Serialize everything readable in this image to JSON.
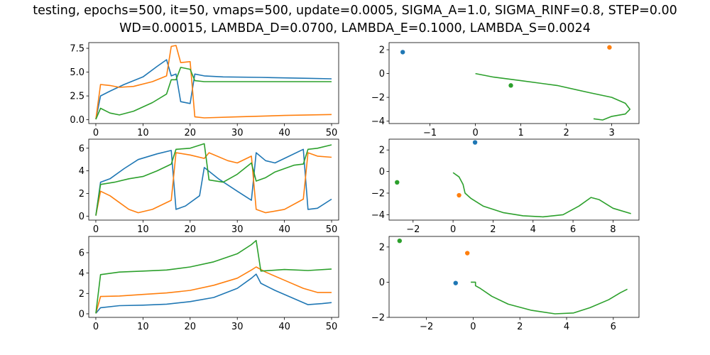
{
  "title": {
    "line1": "testing, epochs=500, it=50, vmaps=500, update=0.0005, SIGMA_A=1.0, SIGMA_RINF=0.8, STEP=0.00",
    "line2": "WD=0.00015, LAMBDA_D=0.0700, LAMBDA_E=0.1000, LAMBDA_S=0.0024"
  },
  "colors": {
    "c0": "#1f77b4",
    "c1": "#ff7f0e",
    "c2": "#2ca02c"
  },
  "chart_data": [
    {
      "type": "line",
      "xlim": [
        -1.5,
        51.5
      ],
      "ylim": [
        -0.4,
        8.1
      ],
      "xticks": [
        0,
        10,
        20,
        30,
        40,
        50
      ],
      "yticks": [
        0.0,
        2.5,
        5.0,
        7.5
      ],
      "ytick_labels": [
        "0.0",
        "2.5",
        "5.0",
        "7.5"
      ],
      "series": [
        {
          "color": "#1f77b4",
          "points": [
            [
              0,
              0.05
            ],
            [
              1,
              2.5
            ],
            [
              3,
              3.0
            ],
            [
              6,
              3.7
            ],
            [
              10,
              4.5
            ],
            [
              13,
              5.6
            ],
            [
              15,
              6.3
            ],
            [
              16,
              4.6
            ],
            [
              17,
              4.8
            ],
            [
              18,
              1.9
            ],
            [
              20,
              1.7
            ],
            [
              21,
              4.8
            ],
            [
              23,
              4.6
            ],
            [
              27,
              4.5
            ],
            [
              35,
              4.45
            ],
            [
              45,
              4.35
            ],
            [
              50,
              4.3
            ]
          ]
        },
        {
          "color": "#ff7f0e",
          "points": [
            [
              0,
              0.05
            ],
            [
              1,
              3.7
            ],
            [
              3,
              3.6
            ],
            [
              5,
              3.4
            ],
            [
              8,
              3.5
            ],
            [
              12,
              4.0
            ],
            [
              15,
              4.6
            ],
            [
              16,
              7.7
            ],
            [
              17,
              7.8
            ],
            [
              18,
              6.0
            ],
            [
              20,
              6.1
            ],
            [
              21,
              0.3
            ],
            [
              23,
              0.2
            ],
            [
              30,
              0.3
            ],
            [
              40,
              0.45
            ],
            [
              50,
              0.55
            ]
          ]
        },
        {
          "color": "#2ca02c",
          "points": [
            [
              0,
              0.05
            ],
            [
              1,
              1.2
            ],
            [
              3,
              0.7
            ],
            [
              5,
              0.5
            ],
            [
              8,
              0.9
            ],
            [
              12,
              1.8
            ],
            [
              15,
              2.7
            ],
            [
              16,
              4.2
            ],
            [
              17,
              4.2
            ],
            [
              18,
              5.5
            ],
            [
              20,
              5.3
            ],
            [
              21,
              4.1
            ],
            [
              23,
              4.0
            ],
            [
              30,
              4.0
            ],
            [
              40,
              4.0
            ],
            [
              50,
              4.0
            ]
          ]
        }
      ]
    },
    {
      "type": "scatter+line",
      "xlim": [
        -1.9,
        3.6
      ],
      "ylim": [
        -4.2,
        2.6
      ],
      "xticks": [
        -1,
        0,
        1,
        2,
        3
      ],
      "yticks": [
        -4,
        -2,
        0,
        2
      ],
      "points": [
        {
          "color": "#1f77b4",
          "x": -1.6,
          "y": 1.8
        },
        {
          "color": "#ff7f0e",
          "x": 2.95,
          "y": 2.2
        },
        {
          "color": "#2ca02c",
          "x": 0.78,
          "y": -1.0
        }
      ],
      "line": {
        "color": "#2ca02c",
        "points": [
          [
            0,
            0.0
          ],
          [
            0.4,
            -0.3
          ],
          [
            1.0,
            -0.6
          ],
          [
            1.8,
            -1.0
          ],
          [
            2.5,
            -1.6
          ],
          [
            3.0,
            -2.0
          ],
          [
            3.3,
            -2.5
          ],
          [
            3.4,
            -3.0
          ],
          [
            3.3,
            -3.4
          ],
          [
            3.0,
            -3.6
          ],
          [
            2.8,
            -3.9
          ],
          [
            2.6,
            -3.8
          ]
        ]
      }
    },
    {
      "type": "line",
      "xlim": [
        -1.5,
        51.5
      ],
      "ylim": [
        -0.35,
        6.8
      ],
      "xticks": [
        0,
        10,
        20,
        30,
        40,
        50
      ],
      "yticks": [
        0,
        2,
        4,
        6
      ],
      "ytick_labels": [
        "0",
        "2",
        "4",
        "6"
      ],
      "series": [
        {
          "color": "#1f77b4",
          "points": [
            [
              0,
              0.05
            ],
            [
              1,
              3.0
            ],
            [
              3,
              3.3
            ],
            [
              6,
              4.2
            ],
            [
              9,
              5.0
            ],
            [
              13,
              5.5
            ],
            [
              16,
              5.8
            ],
            [
              17,
              0.6
            ],
            [
              19,
              0.9
            ],
            [
              22,
              1.8
            ],
            [
              23,
              4.3
            ],
            [
              26,
              3.3
            ],
            [
              30,
              2.2
            ],
            [
              33,
              1.4
            ],
            [
              34,
              5.6
            ],
            [
              36,
              4.9
            ],
            [
              38,
              4.7
            ],
            [
              40,
              5.1
            ],
            [
              44,
              5.9
            ],
            [
              45,
              0.6
            ],
            [
              47,
              0.7
            ],
            [
              50,
              1.5
            ]
          ]
        },
        {
          "color": "#ff7f0e",
          "points": [
            [
              0,
              0.05
            ],
            [
              1,
              2.2
            ],
            [
              3,
              1.8
            ],
            [
              5,
              1.2
            ],
            [
              7,
              0.6
            ],
            [
              9,
              0.3
            ],
            [
              12,
              0.6
            ],
            [
              16,
              1.4
            ],
            [
              17,
              5.6
            ],
            [
              20,
              5.4
            ],
            [
              23,
              5.1
            ],
            [
              24,
              5.6
            ],
            [
              28,
              4.9
            ],
            [
              30,
              4.7
            ],
            [
              33,
              5.3
            ],
            [
              34,
              0.6
            ],
            [
              36,
              0.3
            ],
            [
              40,
              0.6
            ],
            [
              44,
              1.5
            ],
            [
              45,
              5.6
            ],
            [
              47,
              5.3
            ],
            [
              50,
              5.2
            ]
          ]
        },
        {
          "color": "#2ca02c",
          "points": [
            [
              0,
              0.05
            ],
            [
              1,
              2.8
            ],
            [
              4,
              3.0
            ],
            [
              7,
              3.3
            ],
            [
              10,
              3.5
            ],
            [
              13,
              4.0
            ],
            [
              16,
              4.6
            ],
            [
              17,
              5.9
            ],
            [
              20,
              6.0
            ],
            [
              23,
              6.4
            ],
            [
              24,
              3.2
            ],
            [
              27,
              3.0
            ],
            [
              30,
              3.7
            ],
            [
              33,
              4.7
            ],
            [
              34,
              3.1
            ],
            [
              36,
              3.4
            ],
            [
              38,
              3.9
            ],
            [
              42,
              4.5
            ],
            [
              44,
              4.6
            ],
            [
              45,
              5.9
            ],
            [
              47,
              6.0
            ],
            [
              50,
              6.3
            ]
          ]
        }
      ]
    },
    {
      "type": "scatter+line",
      "xlim": [
        -3.2,
        9.3
      ],
      "ylim": [
        -4.5,
        3.0
      ],
      "xticks": [
        -2,
        0,
        2,
        4,
        6,
        8
      ],
      "yticks": [
        -4,
        -2,
        0,
        2
      ],
      "points": [
        {
          "color": "#1f77b4",
          "x": 1.1,
          "y": 2.7
        },
        {
          "color": "#ff7f0e",
          "x": 0.3,
          "y": -2.2
        },
        {
          "color": "#2ca02c",
          "x": -2.8,
          "y": -1.0
        }
      ],
      "line": {
        "color": "#2ca02c",
        "points": [
          [
            0,
            -0.1
          ],
          [
            0.3,
            -0.5
          ],
          [
            0.5,
            -1.2
          ],
          [
            0.6,
            -2.0
          ],
          [
            0.9,
            -2.5
          ],
          [
            1.5,
            -3.2
          ],
          [
            2.5,
            -3.8
          ],
          [
            3.5,
            -4.1
          ],
          [
            4.5,
            -4.2
          ],
          [
            5.5,
            -4.0
          ],
          [
            6.3,
            -3.2
          ],
          [
            6.9,
            -2.4
          ],
          [
            7.3,
            -2.6
          ],
          [
            8.0,
            -3.4
          ],
          [
            8.9,
            -3.9
          ]
        ]
      }
    },
    {
      "type": "line",
      "xlim": [
        -1.5,
        51.5
      ],
      "ylim": [
        -0.35,
        7.6
      ],
      "xticks": [
        0,
        10,
        20,
        30,
        40,
        50
      ],
      "yticks": [
        0,
        2,
        4,
        6
      ],
      "ytick_labels": [
        "0",
        "2",
        "4",
        "6"
      ],
      "series": [
        {
          "color": "#1f77b4",
          "points": [
            [
              0,
              0.05
            ],
            [
              1,
              0.6
            ],
            [
              5,
              0.8
            ],
            [
              10,
              0.85
            ],
            [
              15,
              0.95
            ],
            [
              20,
              1.2
            ],
            [
              25,
              1.6
            ],
            [
              30,
              2.5
            ],
            [
              33,
              3.5
            ],
            [
              34,
              3.9
            ],
            [
              35,
              3.0
            ],
            [
              38,
              2.3
            ],
            [
              42,
              1.5
            ],
            [
              45,
              0.9
            ],
            [
              48,
              1.0
            ],
            [
              50,
              1.1
            ]
          ]
        },
        {
          "color": "#ff7f0e",
          "points": [
            [
              0,
              0.05
            ],
            [
              1,
              1.7
            ],
            [
              5,
              1.75
            ],
            [
              10,
              1.9
            ],
            [
              15,
              2.05
            ],
            [
              20,
              2.3
            ],
            [
              25,
              2.8
            ],
            [
              30,
              3.5
            ],
            [
              33,
              4.3
            ],
            [
              34,
              4.6
            ],
            [
              36,
              4.1
            ],
            [
              40,
              3.3
            ],
            [
              44,
              2.5
            ],
            [
              47,
              2.1
            ],
            [
              50,
              2.1
            ]
          ]
        },
        {
          "color": "#2ca02c",
          "points": [
            [
              0,
              0.05
            ],
            [
              1,
              3.85
            ],
            [
              5,
              4.1
            ],
            [
              10,
              4.2
            ],
            [
              15,
              4.3
            ],
            [
              20,
              4.6
            ],
            [
              25,
              5.1
            ],
            [
              30,
              5.9
            ],
            [
              33,
              6.8
            ],
            [
              34,
              7.2
            ],
            [
              35,
              4.2
            ],
            [
              40,
              4.35
            ],
            [
              45,
              4.25
            ],
            [
              50,
              4.4
            ]
          ]
        }
      ]
    },
    {
      "type": "scatter+line",
      "xlim": [
        -3.6,
        7.1
      ],
      "ylim": [
        -2.0,
        2.6
      ],
      "xticks": [
        -2,
        0,
        2,
        4,
        6
      ],
      "yticks": [
        -2,
        0,
        2
      ],
      "points": [
        {
          "color": "#1f77b4",
          "x": -0.75,
          "y": -0.05
        },
        {
          "color": "#ff7f0e",
          "x": -0.25,
          "y": 1.65
        },
        {
          "color": "#2ca02c",
          "x": -3.15,
          "y": 2.35
        }
      ],
      "line": {
        "color": "#2ca02c",
        "points": [
          [
            -0.1,
            0.0
          ],
          [
            0.1,
            0.0
          ],
          [
            0.1,
            -0.2
          ],
          [
            0.3,
            -0.35
          ],
          [
            0.8,
            -0.8
          ],
          [
            1.5,
            -1.25
          ],
          [
            2.5,
            -1.6
          ],
          [
            3.5,
            -1.8
          ],
          [
            4.3,
            -1.75
          ],
          [
            5.0,
            -1.45
          ],
          [
            5.8,
            -1.0
          ],
          [
            6.3,
            -0.6
          ],
          [
            6.6,
            -0.4
          ]
        ]
      }
    }
  ]
}
